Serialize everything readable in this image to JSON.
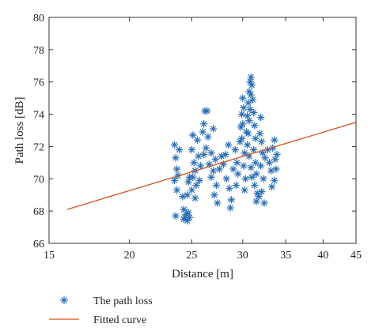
{
  "chart_data": {
    "type": "scatter",
    "xlabel": "Distance [m]",
    "ylabel": "Path loss [dB]",
    "xscale": "log",
    "xlim": [
      15,
      45
    ],
    "ylim": [
      66,
      80
    ],
    "xticks": [
      15,
      20,
      25,
      30,
      35,
      40,
      45
    ],
    "yticks": [
      66,
      68,
      70,
      72,
      74,
      76,
      78,
      80
    ],
    "grid": false,
    "legend_position": "bottom-left, below plot",
    "colors": {
      "scatter": "#2a6fb5",
      "line": "#d2541e"
    },
    "series": [
      {
        "name": "The path loss",
        "kind": "scatter",
        "marker": "asterisk",
        "points": [
          [
            23.5,
            72.1
          ],
          [
            23.6,
            71.3
          ],
          [
            23.7,
            70.6
          ],
          [
            23.5,
            69.9
          ],
          [
            23.8,
            70.2
          ],
          [
            23.6,
            67.7
          ],
          [
            23.9,
            71.8
          ],
          [
            23.7,
            69.3
          ],
          [
            24.2,
            68.9
          ],
          [
            24.3,
            68.1
          ],
          [
            24.4,
            67.6
          ],
          [
            24.5,
            67.8
          ],
          [
            24.6,
            67.4
          ],
          [
            24.7,
            67.9
          ],
          [
            24.8,
            67.6
          ],
          [
            24.3,
            67.5
          ],
          [
            24.7,
            69.8
          ],
          [
            24.8,
            70.1
          ],
          [
            24.6,
            69.0
          ],
          [
            25.0,
            71.8
          ],
          [
            25.1,
            72.7
          ],
          [
            25.2,
            71.0
          ],
          [
            25.3,
            70.5
          ],
          [
            25.1,
            70.1
          ],
          [
            25.4,
            69.6
          ],
          [
            25.0,
            69.3
          ],
          [
            25.3,
            68.8
          ],
          [
            25.6,
            71.4
          ],
          [
            25.5,
            72.4
          ],
          [
            25.8,
            70.8
          ],
          [
            25.7,
            69.9
          ],
          [
            26.0,
            72.9
          ],
          [
            26.1,
            73.4
          ],
          [
            26.2,
            74.2
          ],
          [
            26.4,
            74.2
          ],
          [
            26.3,
            71.9
          ],
          [
            26.1,
            71.5
          ],
          [
            26.5,
            72.6
          ],
          [
            26.6,
            70.9
          ],
          [
            26.8,
            71.6
          ],
          [
            27.0,
            73.1
          ],
          [
            27.2,
            71.2
          ],
          [
            27.0,
            70.5
          ],
          [
            26.8,
            70.1
          ],
          [
            27.3,
            69.6
          ],
          [
            27.1,
            69.0
          ],
          [
            27.4,
            68.5
          ],
          [
            27.6,
            70.6
          ],
          [
            27.8,
            71.4
          ],
          [
            28.0,
            70.9
          ],
          [
            28.2,
            71.5
          ],
          [
            28.5,
            72.1
          ],
          [
            28.3,
            70.0
          ],
          [
            28.6,
            69.4
          ],
          [
            28.8,
            68.7
          ],
          [
            28.7,
            68.2
          ],
          [
            29.0,
            70.6
          ],
          [
            29.2,
            71.8
          ],
          [
            29.4,
            71.0
          ],
          [
            29.5,
            70.3
          ],
          [
            29.3,
            69.6
          ],
          [
            29.7,
            72.3
          ],
          [
            29.8,
            73.2
          ],
          [
            29.9,
            74.0
          ],
          [
            30.0,
            75.0
          ],
          [
            30.1,
            74.4
          ],
          [
            30.0,
            73.4
          ],
          [
            29.9,
            72.5
          ],
          [
            30.2,
            71.6
          ],
          [
            30.1,
            70.8
          ],
          [
            30.3,
            70.0
          ],
          [
            30.2,
            69.3
          ],
          [
            30.4,
            72.9
          ],
          [
            30.5,
            73.9
          ],
          [
            30.6,
            74.7
          ],
          [
            30.7,
            75.4
          ],
          [
            30.8,
            76.0
          ],
          [
            30.9,
            76.3
          ],
          [
            31.0,
            75.8
          ],
          [
            30.9,
            75.2
          ],
          [
            30.8,
            74.3
          ],
          [
            30.7,
            73.6
          ],
          [
            30.6,
            72.8
          ],
          [
            30.5,
            72.1
          ],
          [
            30.7,
            71.4
          ],
          [
            30.9,
            70.7
          ],
          [
            31.0,
            70.1
          ],
          [
            31.1,
            74.9
          ],
          [
            31.2,
            74.1
          ],
          [
            31.3,
            73.3
          ],
          [
            31.4,
            72.5
          ],
          [
            31.2,
            71.8
          ],
          [
            31.4,
            71.0
          ],
          [
            31.5,
            70.3
          ],
          [
            31.3,
            69.6
          ],
          [
            31.6,
            69.1
          ],
          [
            31.5,
            68.6
          ],
          [
            31.8,
            68.9
          ],
          [
            31.9,
            72.8
          ],
          [
            32.0,
            73.8
          ],
          [
            32.1,
            72.3
          ],
          [
            32.2,
            71.6
          ],
          [
            32.0,
            70.8
          ],
          [
            32.3,
            70.0
          ],
          [
            32.1,
            69.2
          ],
          [
            32.4,
            68.5
          ],
          [
            32.5,
            71.3
          ],
          [
            32.8,
            71.8
          ],
          [
            33.0,
            71.0
          ],
          [
            33.2,
            70.5
          ],
          [
            33.4,
            71.9
          ],
          [
            33.6,
            72.4
          ],
          [
            33.7,
            71.2
          ],
          [
            33.8,
            70.6
          ],
          [
            33.9,
            71.5
          ],
          [
            33.6,
            69.9
          ],
          [
            33.3,
            69.5
          ]
        ]
      },
      {
        "name": "Fitted curve",
        "kind": "line",
        "x": [
          16,
          45
        ],
        "y": [
          68.1,
          73.5
        ]
      }
    ]
  }
}
